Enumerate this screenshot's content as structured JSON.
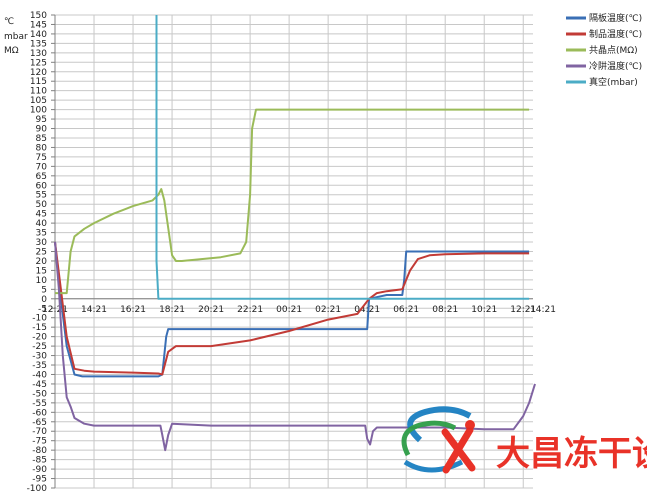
{
  "chart_data": {
    "type": "line",
    "unit_labels": [
      "℃",
      "mbar",
      "MΩ"
    ],
    "ylim": [
      -100,
      150
    ],
    "y_ticks": [
      150,
      145,
      140,
      135,
      130,
      125,
      120,
      115,
      110,
      105,
      100,
      95,
      90,
      85,
      80,
      75,
      70,
      65,
      60,
      55,
      50,
      45,
      40,
      35,
      30,
      25,
      20,
      15,
      10,
      5,
      0,
      -5,
      -10,
      -15,
      -20,
      -25,
      -30,
      -35,
      -40,
      -45,
      -50,
      -55,
      -60,
      -65,
      -70,
      -75,
      -80,
      -85,
      -90,
      -95,
      -100
    ],
    "xlim": [
      0,
      24.5
    ],
    "x_ticks": [
      {
        "x": 0,
        "label": "12:21"
      },
      {
        "x": 2,
        "label": "14:21"
      },
      {
        "x": 4,
        "label": "16:21"
      },
      {
        "x": 6,
        "label": "18:21"
      },
      {
        "x": 8,
        "label": "20:21"
      },
      {
        "x": 10,
        "label": "22:21"
      },
      {
        "x": 12,
        "label": "00:21"
      },
      {
        "x": 14,
        "label": "02:21"
      },
      {
        "x": 16,
        "label": "04:21"
      },
      {
        "x": 18,
        "label": "06:21"
      },
      {
        "x": 20,
        "label": "08:21"
      },
      {
        "x": 22,
        "label": "10:21"
      },
      {
        "x": 24,
        "label": "12:21"
      },
      {
        "x": 26,
        "label": "14:21"
      }
    ],
    "grid": true,
    "legend_position": "right",
    "series": [
      {
        "name": "隔板温度(℃)",
        "color": "#3a6fb5",
        "x": [
          0,
          0.3,
          0.6,
          1.0,
          1.4,
          2.0,
          4.0,
          5.3,
          5.5,
          5.7,
          5.8,
          8.0,
          12.0,
          16.0,
          16.1,
          17.0,
          17.8,
          17.9,
          18.0,
          18.5,
          20.0,
          22.0,
          24.0,
          24.3
        ],
        "y": [
          30,
          0,
          -25,
          -40,
          -41,
          -41,
          -41,
          -41,
          -40,
          -20,
          -16,
          -16,
          -16,
          -16,
          0,
          2,
          2,
          10,
          25,
          25,
          25,
          25,
          25,
          25
        ]
      },
      {
        "name": "制品温度(℃)",
        "color": "#c23b36",
        "x": [
          0,
          0.3,
          0.6,
          1.0,
          1.5,
          2.0,
          4.0,
          5.3,
          5.5,
          5.8,
          6.2,
          8.0,
          10.0,
          12.0,
          14.0,
          15.5,
          16.1,
          16.5,
          17.0,
          17.8,
          18.2,
          18.6,
          19.2,
          20.0,
          22.0,
          24.3
        ],
        "y": [
          30,
          5,
          -20,
          -37,
          -38,
          -38.5,
          -39,
          -39.5,
          -40,
          -28,
          -25,
          -25,
          -22,
          -17,
          -11,
          -8,
          0,
          3,
          4,
          5,
          15,
          21,
          23,
          23.5,
          24,
          24
        ]
      },
      {
        "name": "共晶点(MΩ)",
        "color": "#9bbb59",
        "x": [
          0,
          0.6,
          0.8,
          1.0,
          1.5,
          2.0,
          3.0,
          4.0,
          5.0,
          5.3,
          5.45,
          5.6,
          6.0,
          6.2,
          6.5,
          7.5,
          8.5,
          9.5,
          9.8,
          10.0,
          10.1,
          10.3,
          24.3
        ],
        "y": [
          3,
          3,
          25,
          33,
          37,
          40,
          45,
          49,
          52,
          55,
          58,
          52,
          23,
          20,
          20,
          21,
          22,
          24,
          30,
          55,
          90,
          100,
          100
        ]
      },
      {
        "name": "冷阱温度(℃)",
        "color": "#8064a2",
        "x": [
          0,
          0.2,
          0.4,
          0.6,
          0.8,
          1.0,
          1.5,
          2.0,
          4.0,
          5.4,
          5.5,
          5.65,
          5.8,
          6.0,
          8.0,
          12.0,
          15.9,
          16.0,
          16.15,
          16.3,
          16.5,
          18.0,
          20.0,
          22.0,
          23.5,
          24.0,
          24.3,
          24.6
        ],
        "y": [
          30,
          5,
          -30,
          -52,
          -57,
          -63,
          -66,
          -67,
          -67,
          -67,
          -72,
          -80,
          -72,
          -66,
          -67,
          -67,
          -67,
          -74,
          -77,
          -70,
          -68,
          -68,
          -68,
          -69,
          -69,
          -62,
          -55,
          -45
        ]
      },
      {
        "name": "真空(mbar)",
        "color": "#4bacc6",
        "x": [
          5.2,
          5.2,
          5.3,
          24.3
        ],
        "y": [
          150,
          20,
          0,
          0
        ]
      }
    ]
  },
  "watermark": {
    "text": "大昌冻干设备"
  }
}
